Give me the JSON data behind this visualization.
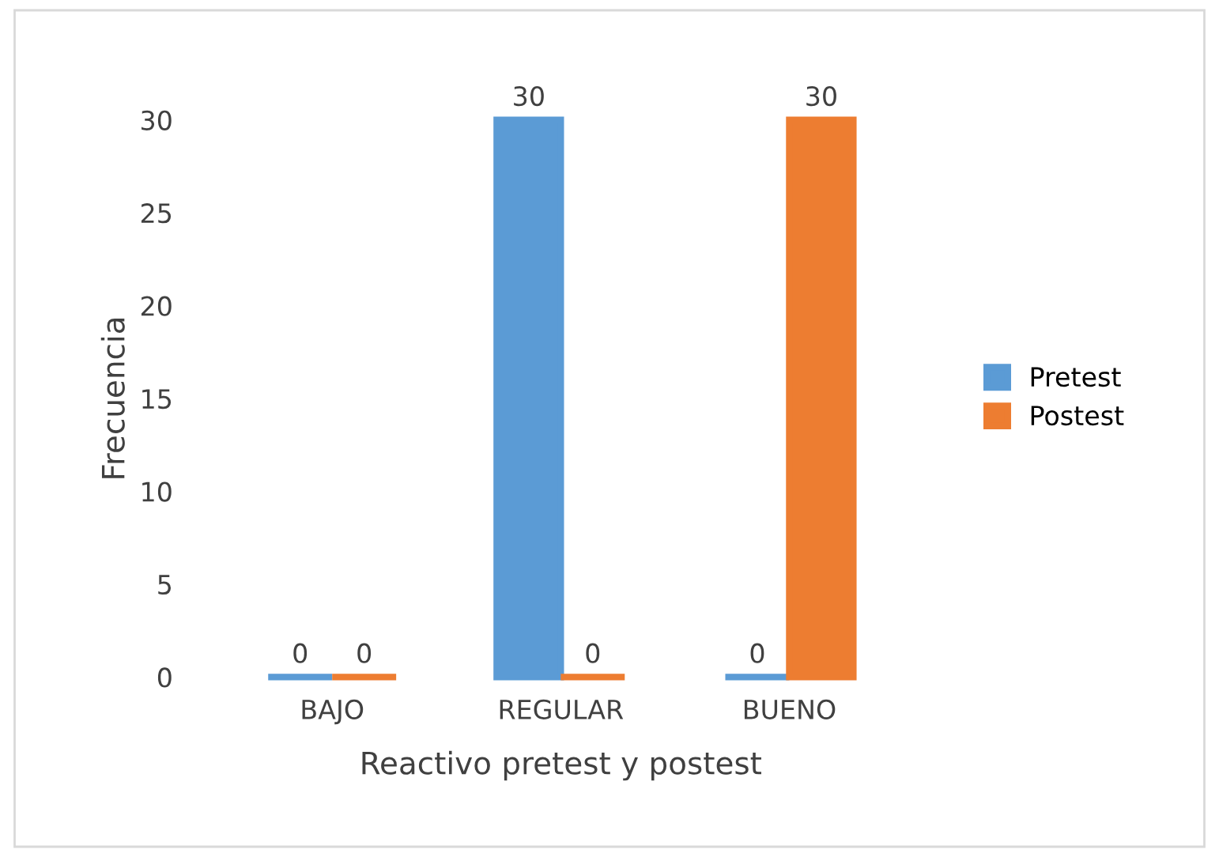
{
  "chart_data": {
    "type": "bar",
    "xlabel": "Reactivo pretest y postest",
    "ylabel": "Frecuencia",
    "categories": [
      "BAJO",
      "REGULAR",
      "BUENO"
    ],
    "series": [
      {
        "name": "Pretest",
        "color": "#5b9bd5",
        "values": [
          0,
          30,
          0
        ]
      },
      {
        "name": "Postest",
        "color": "#ed7d31",
        "values": [
          0,
          0,
          30
        ]
      }
    ],
    "ylim": [
      0,
      30
    ],
    "yticks": [
      0,
      5,
      10,
      15,
      20,
      25,
      30
    ],
    "grid": false,
    "legend": "right",
    "data_labels": true
  }
}
